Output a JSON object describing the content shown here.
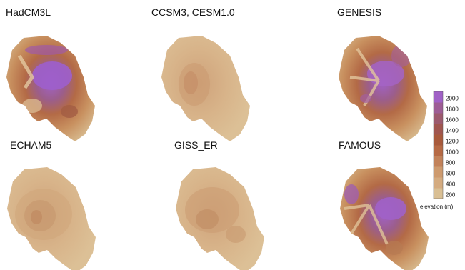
{
  "panels": [
    {
      "id": "hadcm3l",
      "label": "HadCM3L",
      "peak_color": "#9b59d0",
      "style": "high"
    },
    {
      "id": "ccsm3",
      "label": "CCSM3, CESM1.0",
      "peak_color": "#d6b98c",
      "style": "low"
    },
    {
      "id": "genesis",
      "label": "GENESIS",
      "peak_color": "#a460c8",
      "style": "high"
    },
    {
      "id": "echam5",
      "label": "ECHAM5",
      "peak_color": "#c9a27a",
      "style": "low"
    },
    {
      "id": "giss_er",
      "label": "GISS_ER",
      "peak_color": "#c49972",
      "style": "low"
    },
    {
      "id": "famous",
      "label": "FAMOUS",
      "peak_color": "#a15fcb",
      "style": "high"
    }
  ],
  "colorbar": {
    "title": "elevation (m)",
    "ticks": [
      "200",
      "400",
      "600",
      "800",
      "1000",
      "1200",
      "1400",
      "1600",
      "1800",
      "2000"
    ],
    "colors": [
      "#d9bf94",
      "#d4ab80",
      "#cd9a6e",
      "#c2825a",
      "#b66a45",
      "#a85a3c",
      "#a0564f",
      "#9c5a6e",
      "#9d5d95",
      "#a061c6"
    ]
  }
}
